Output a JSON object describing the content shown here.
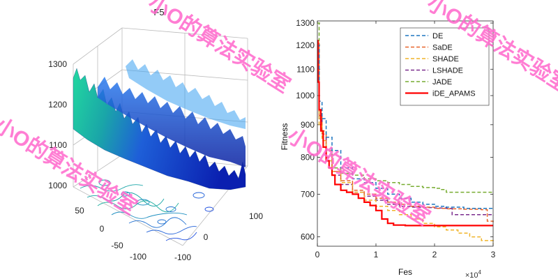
{
  "left_plot": {
    "title": "F5",
    "z_ticks": [
      "1000",
      "1100",
      "1200",
      "1300"
    ],
    "x_ticks": [
      "-100",
      "0",
      "100"
    ],
    "y_ticks": [
      "-100",
      "-50",
      "0",
      "50"
    ]
  },
  "chart_data": {
    "type": "line",
    "xlabel": "Fes",
    "ylabel": "Fitness",
    "x_exponent_label": "×10",
    "x_exponent_power": "4",
    "x_ticks": [
      "0",
      "1",
      "2",
      "3"
    ],
    "y_ticks": [
      "600",
      "700",
      "800",
      "900",
      "1000",
      "1100",
      "1200",
      "1300"
    ],
    "xlim": [
      0,
      30000
    ],
    "ylim": [
      580,
      1310
    ],
    "y_scale": "log",
    "legend_position": "top-right",
    "series": [
      {
        "name": "DE",
        "color": "#1f77c0",
        "dash": "dashed",
        "x": [
          0,
          300,
          800,
          1500,
          2500,
          4000,
          6000,
          8000,
          10000,
          12000,
          14000,
          16000,
          18000,
          20000,
          22000,
          25000,
          28000,
          30000
        ],
        "y": [
          1200,
          980,
          920,
          860,
          820,
          770,
          740,
          730,
          715,
          700,
          690,
          680,
          675,
          670,
          668,
          665,
          665,
          665
        ]
      },
      {
        "name": "SaDE",
        "color": "#e8642a",
        "dash": "dashed",
        "x": [
          0,
          300,
          800,
          1500,
          2500,
          4000,
          6000,
          8000,
          10000,
          12000,
          14000,
          16000,
          18000,
          20000,
          22000,
          25000,
          28000,
          29000,
          30000
        ],
        "y": [
          1210,
          930,
          870,
          800,
          760,
          735,
          710,
          700,
          690,
          680,
          675,
          670,
          668,
          665,
          664,
          663,
          662,
          635,
          630
        ]
      },
      {
        "name": "SHADE",
        "color": "#f0b429",
        "dash": "dashed",
        "x": [
          0,
          300,
          800,
          1500,
          2500,
          4000,
          6000,
          8000,
          10000,
          12000,
          14000,
          16000,
          18000,
          20000,
          22000,
          24000,
          26000,
          28000,
          30000
        ],
        "y": [
          1200,
          900,
          850,
          790,
          760,
          730,
          705,
          685,
          670,
          660,
          650,
          640,
          630,
          622,
          615,
          608,
          600,
          592,
          585
        ]
      },
      {
        "name": "LSHADE",
        "color": "#7b2d8e",
        "dash": "dashed",
        "x": [
          0,
          300,
          800,
          1500,
          2500,
          4000,
          6000,
          8000,
          10000,
          12000,
          14000,
          16000,
          18000,
          20000,
          22000,
          23000,
          30000
        ],
        "y": [
          1200,
          920,
          860,
          790,
          750,
          725,
          705,
          695,
          685,
          675,
          670,
          668,
          667,
          666,
          665,
          650,
          648
        ]
      },
      {
        "name": "JADE",
        "color": "#77ac30",
        "dash": "dashed",
        "x": [
          0,
          300,
          800,
          1500,
          2500,
          4000,
          6000,
          8000,
          10000,
          12000,
          14000,
          16000,
          18000,
          20000,
          21000,
          22000,
          30000
        ],
        "y": [
          1300,
          950,
          880,
          820,
          770,
          755,
          750,
          740,
          735,
          730,
          725,
          720,
          717,
          715,
          712,
          705,
          705
        ]
      },
      {
        "name": "iDE_APAMS",
        "color": "#ff0000",
        "dash": "solid",
        "x": [
          0,
          100,
          300,
          600,
          1000,
          1500,
          2000,
          2500,
          3000,
          4000,
          5000,
          6000,
          7000,
          8000,
          9000,
          10000,
          11000,
          12000,
          13000,
          15000,
          20000,
          25000,
          30000
        ],
        "y": [
          1220,
          1050,
          950,
          880,
          830,
          790,
          770,
          750,
          725,
          710,
          705,
          700,
          690,
          680,
          672,
          660,
          640,
          630,
          626,
          625,
          625,
          625,
          625
        ]
      }
    ]
  },
  "watermark": {
    "text": "小O的算法实验室",
    "color": "#ff66cc"
  }
}
